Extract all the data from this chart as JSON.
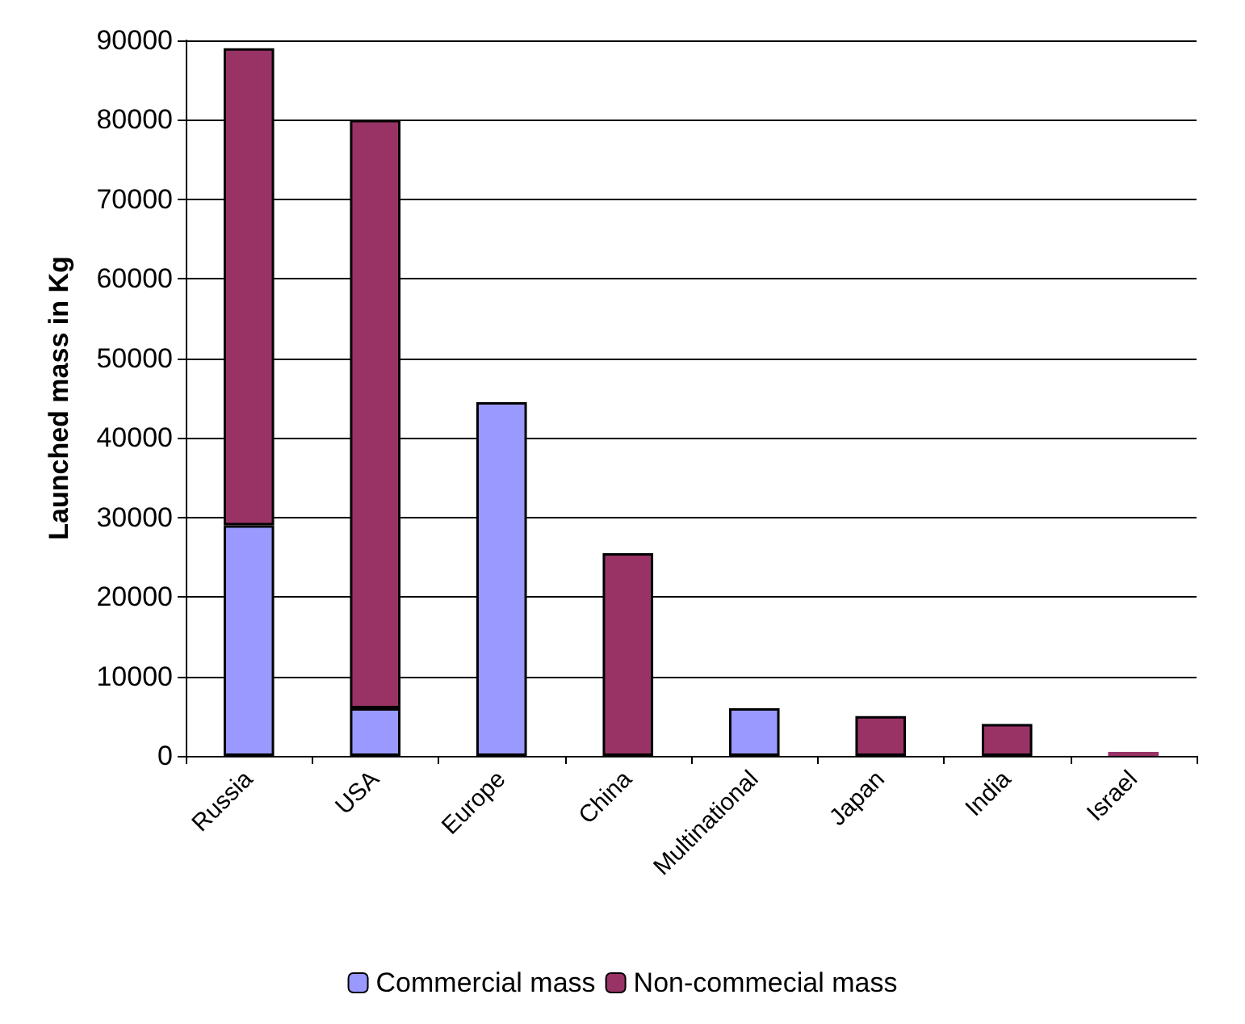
{
  "chart_data": {
    "type": "bar",
    "stacked": true,
    "ylabel": "Launched mass in Kg",
    "categories": [
      "Russia",
      "USA",
      "Europe",
      "China",
      "Multinational",
      "Japan",
      "India",
      "Israel"
    ],
    "series": [
      {
        "name": "Commercial mass",
        "color": "#9999ff",
        "values": [
          29000,
          6000,
          44500,
          0,
          6000,
          0,
          0,
          0
        ]
      },
      {
        "name": "Non-commecial mass",
        "color": "#993366",
        "values": [
          60000,
          74000,
          0,
          25500,
          0,
          5000,
          4000,
          500
        ]
      }
    ],
    "ylim": [
      0,
      90000
    ],
    "yticks": [
      0,
      10000,
      20000,
      30000,
      40000,
      50000,
      60000,
      70000,
      80000,
      90000
    ],
    "grid": "y",
    "legend": "bottom"
  }
}
